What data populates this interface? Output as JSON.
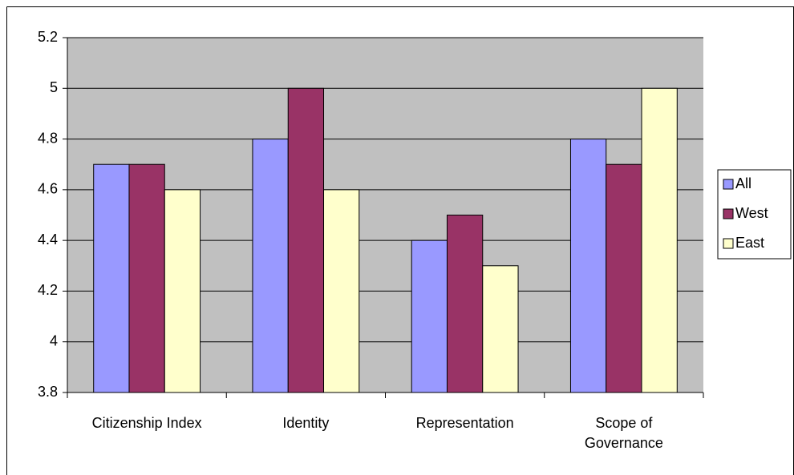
{
  "chart_data": {
    "type": "bar",
    "categories": [
      "Citizenship Index",
      "Identity",
      "Representation",
      "Scope of Governance"
    ],
    "series": [
      {
        "name": "All",
        "color": "#9999ff",
        "values": [
          4.7,
          4.8,
          4.4,
          4.8
        ]
      },
      {
        "name": "West",
        "color": "#993366",
        "values": [
          4.7,
          5.0,
          4.5,
          4.7
        ]
      },
      {
        "name": "East",
        "color": "#ffffcc",
        "values": [
          4.6,
          4.6,
          4.3,
          5.0
        ]
      }
    ],
    "ylim": [
      3.8,
      5.2
    ],
    "yticks": [
      3.8,
      4,
      4.2,
      4.4,
      4.6,
      4.8,
      5,
      5.2
    ],
    "grid": true,
    "plot_background": "#c0c0c0",
    "legend": "right"
  }
}
